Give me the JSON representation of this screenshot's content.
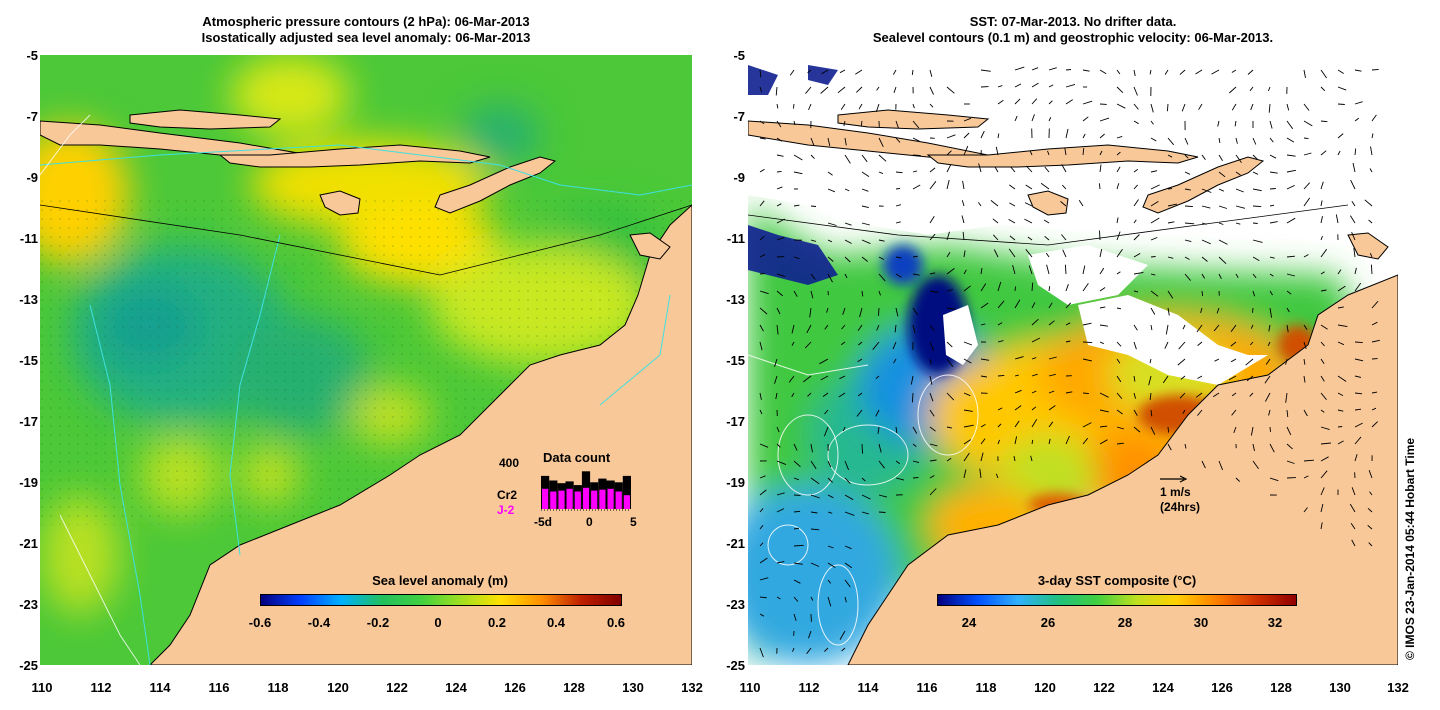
{
  "left_panel": {
    "title_line1": "Atmospheric pressure contours (2 hPa): 06-Mar-2013",
    "title_line2": "Isostatically adjusted sea level anomaly: 06-Mar-2013",
    "colorbar_label": "Sea level anomaly (m)",
    "colorbar_ticks": [
      "-0.6",
      "-0.4",
      "-0.2",
      "0",
      "0.2",
      "0.4",
      "0.6"
    ],
    "data_count": {
      "title": "Data count",
      "max_label": "400",
      "series1": "Cr2",
      "series2": "J-2",
      "series2_color": "#ff00ff",
      "x_ticks": [
        "-5d",
        "0",
        "5"
      ],
      "cr2_fraction": [
        0.72,
        0.62,
        0.56,
        0.6,
        0.52,
        0.82,
        0.58,
        0.66,
        0.62,
        0.58,
        0.72
      ],
      "j2_fraction": [
        0.44,
        0.38,
        0.4,
        0.44,
        0.38,
        0.46,
        0.4,
        0.42,
        0.44,
        0.38,
        0.3
      ]
    }
  },
  "right_panel": {
    "title_line1": "SST: 07-Mar-2013. No drifter data.",
    "title_line2": "Sealevel contours (0.1 m) and geostrophic velocity: 06-Mar-2013.",
    "colorbar_label": "3-day SST composite (°C)",
    "colorbar_ticks": [
      "24",
      "26",
      "28",
      "30",
      "32"
    ],
    "velocity_scale_label": "1 m/s",
    "velocity_scale_sub": "(24hrs)"
  },
  "axes": {
    "y_ticks": [
      "-5",
      "-7",
      "-9",
      "-11",
      "-13",
      "-15",
      "-17",
      "-19",
      "-21",
      "-23",
      "-25"
    ],
    "x_ticks": [
      "110",
      "112",
      "114",
      "116",
      "118",
      "120",
      "122",
      "124",
      "126",
      "128",
      "130",
      "132"
    ]
  },
  "credit": "© IMOS 23-Jan-2014 05:44 Hobart Time",
  "colors": {
    "land": "#f9c898",
    "no_data": "#ffffff",
    "sla_scale": [
      "#00007f",
      "#0040ff",
      "#00b0ff",
      "#20c060",
      "#40d040",
      "#a0e020",
      "#ffe000",
      "#ff9000",
      "#c02000",
      "#800000"
    ],
    "sst_scale": [
      "#00007f",
      "#0050ff",
      "#30b0ff",
      "#20c080",
      "#40d040",
      "#c0e020",
      "#ffd000",
      "#ff8000",
      "#d03000",
      "#900000"
    ]
  }
}
